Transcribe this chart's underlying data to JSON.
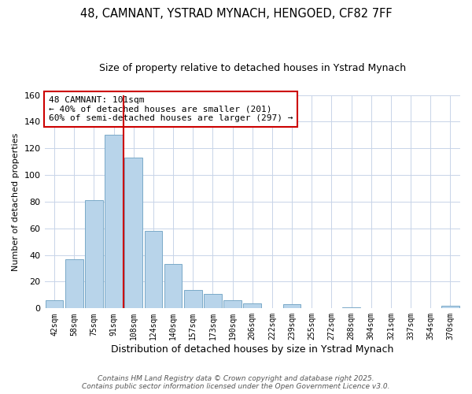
{
  "title": "48, CAMNANT, YSTRAD MYNACH, HENGOED, CF82 7FF",
  "subtitle": "Size of property relative to detached houses in Ystrad Mynach",
  "xlabel": "Distribution of detached houses by size in Ystrad Mynach",
  "ylabel": "Number of detached properties",
  "bins": [
    "42sqm",
    "58sqm",
    "75sqm",
    "91sqm",
    "108sqm",
    "124sqm",
    "140sqm",
    "157sqm",
    "173sqm",
    "190sqm",
    "206sqm",
    "222sqm",
    "239sqm",
    "255sqm",
    "272sqm",
    "288sqm",
    "304sqm",
    "321sqm",
    "337sqm",
    "354sqm",
    "370sqm"
  ],
  "values": [
    6,
    37,
    81,
    130,
    113,
    58,
    33,
    14,
    11,
    6,
    4,
    0,
    3,
    0,
    0,
    1,
    0,
    0,
    0,
    0,
    2
  ],
  "bar_color": "#b8d4ea",
  "bar_edge_color": "#7aaac8",
  "vline_x_index": 3,
  "vline_color": "#cc0000",
  "annotation_text": "48 CAMNANT: 101sqm\n← 40% of detached houses are smaller (201)\n60% of semi-detached houses are larger (297) →",
  "annotation_box_facecolor": "white",
  "annotation_box_edgecolor": "#cc0000",
  "ylim": [
    0,
    160
  ],
  "yticks": [
    0,
    20,
    40,
    60,
    80,
    100,
    120,
    140,
    160
  ],
  "grid_color": "#c8d4e8",
  "background_color": "#ffffff",
  "footer_line1": "Contains HM Land Registry data © Crown copyright and database right 2025.",
  "footer_line2": "Contains public sector information licensed under the Open Government Licence v3.0.",
  "title_fontsize": 10.5,
  "subtitle_fontsize": 9,
  "xlabel_fontsize": 9,
  "ylabel_fontsize": 8,
  "annotation_fontsize": 8,
  "footer_fontsize": 6.5
}
